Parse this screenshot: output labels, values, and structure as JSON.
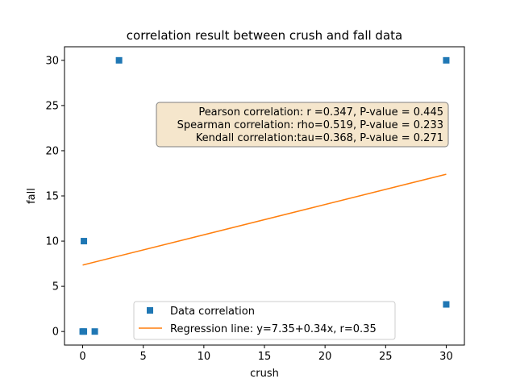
{
  "chart_data": {
    "type": "scatter",
    "title": "correlation result between crush and fall data",
    "xlabel": "crush",
    "ylabel": "fall",
    "xlim": [
      -1.5,
      31.5
    ],
    "ylim": [
      -1.5,
      31.5
    ],
    "xticks": [
      0,
      5,
      10,
      15,
      20,
      25,
      30
    ],
    "yticks": [
      0,
      5,
      10,
      15,
      20,
      25,
      30
    ],
    "grid": false,
    "legend_position": "lower-center",
    "series": [
      {
        "name": "Data correlation",
        "kind": "scatter",
        "marker": "square",
        "color": "#1f77b4",
        "points": [
          {
            "x": 0,
            "y": 0
          },
          {
            "x": 0.1,
            "y": 0
          },
          {
            "x": 1,
            "y": 0
          },
          {
            "x": 0.1,
            "y": 10
          },
          {
            "x": 3,
            "y": 30
          },
          {
            "x": 30,
            "y": 30
          },
          {
            "x": 30,
            "y": 3
          }
        ]
      },
      {
        "name": "Regression line: y=7.35+0.34x, r=0.35",
        "kind": "line",
        "color": "#ff7f0e",
        "points": [
          {
            "x": 0,
            "y": 7.35
          },
          {
            "x": 30,
            "y": 17.4
          }
        ]
      }
    ],
    "annotations": {
      "lines": [
        "Pearson correlation: r =0.347, P-value = 0.445",
        "Spearman correlation: rho=0.519, P-value = 0.233",
        "Kendall correlation:tau=0.368, P-value = 0.271"
      ],
      "box_fill": "#f5e6cc",
      "box_stroke": "#7f7f7f"
    }
  }
}
